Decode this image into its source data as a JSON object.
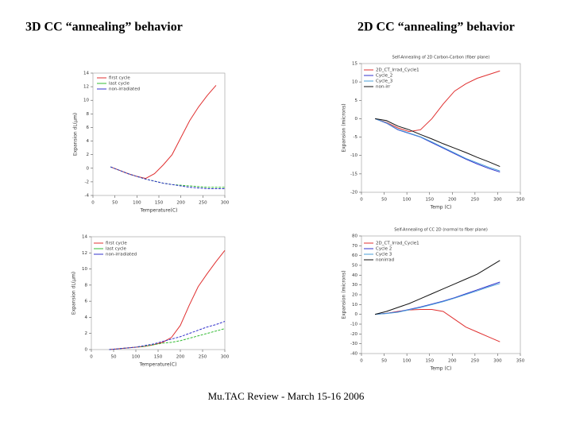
{
  "headings": [
    "3D CC “annealing” behavior",
    "2D CC “annealing” behavior"
  ],
  "footer": "Mu.TAC Review - March 15-16 2006",
  "chart_data": [
    {
      "type": "line",
      "xlabel": "Temperature(C)",
      "ylabel": "Expansion dL(µm)",
      "x": [
        40,
        60,
        80,
        100,
        120,
        140,
        160,
        180,
        200,
        220,
        240,
        260,
        280,
        300
      ],
      "xlim": [
        0,
        300
      ],
      "xticks": [
        0,
        50,
        100,
        150,
        200,
        250,
        300
      ],
      "ylim": [
        -4,
        14
      ],
      "yticks": [
        -4,
        -2,
        0,
        2,
        4,
        6,
        8,
        10,
        12,
        14
      ],
      "series": [
        {
          "name": "first cycle",
          "color": "#e03030",
          "values": [
            0.2,
            -0.3,
            -0.8,
            -1.2,
            -1.5,
            -0.8,
            0.5,
            2,
            4.5,
            7,
            9,
            10.7,
            12.2,
            null
          ]
        },
        {
          "name": "last cycle",
          "color": "#33bb33",
          "values": [
            0.2,
            -0.3,
            -0.8,
            -1.2,
            -1.6,
            -1.9,
            -2.2,
            -2.4,
            -2.5,
            -2.6,
            -2.7,
            -2.8,
            -2.8,
            -2.8
          ]
        },
        {
          "name": "non-irradiated",
          "color": "#3333cc",
          "values": [
            0.2,
            -0.3,
            -0.8,
            -1.2,
            -1.6,
            -1.9,
            -2.2,
            -2.4,
            -2.6,
            -2.8,
            -2.9,
            -3,
            -3,
            -3
          ]
        }
      ]
    },
    {
      "type": "line",
      "title": "Self-Annealing of 2D Carbon-Carbon (fiber plane)",
      "xlabel": "Temp (C)",
      "ylabel": "Expansion (microns)",
      "x": [
        30,
        55,
        80,
        105,
        130,
        155,
        180,
        205,
        230,
        255,
        280,
        305
      ],
      "xlim": [
        0,
        350
      ],
      "xticks": [
        0,
        50,
        100,
        150,
        200,
        250,
        300,
        350
      ],
      "ylim": [
        -20,
        15
      ],
      "yticks": [
        -20,
        -15,
        -10,
        -5,
        0,
        5,
        10,
        15
      ],
      "series": [
        {
          "name": "2D_CT_Irrad_Cycle1",
          "color": "#e03030",
          "values": [
            0,
            -1,
            -2.5,
            -3.5,
            -3,
            0,
            4,
            7.5,
            9.5,
            11,
            12,
            13
          ]
        },
        {
          "name": "Cycle_2",
          "color": "#3333cc",
          "values": [
            0,
            -1.2,
            -3,
            -4,
            -5,
            -6.5,
            -8,
            -9.5,
            -11,
            -12.3,
            -13.5,
            -14.5
          ]
        },
        {
          "name": "Cycle_3",
          "color": "#4a9fd8",
          "values": [
            0,
            -1.1,
            -2.9,
            -3.9,
            -4.9,
            -6.3,
            -7.8,
            -9.3,
            -10.8,
            -12,
            -13.2,
            -14.2
          ]
        },
        {
          "name": "non-irr",
          "color": "#111111",
          "values": [
            0,
            -0.5,
            -2,
            -3,
            -4.3,
            -5.5,
            -6.8,
            -8,
            -9.2,
            -10.5,
            -11.7,
            -13
          ]
        }
      ]
    },
    {
      "type": "line",
      "xlabel": "Temperature(C)",
      "ylabel": "Expansion dL(µm)",
      "x": [
        40,
        60,
        80,
        100,
        120,
        140,
        160,
        180,
        200,
        220,
        240,
        260,
        280,
        300
      ],
      "xlim": [
        0,
        300
      ],
      "xticks": [
        0,
        50,
        100,
        150,
        200,
        250,
        300
      ],
      "ylim": [
        0,
        14
      ],
      "yticks": [
        0,
        2,
        4,
        6,
        8,
        10,
        12,
        14
      ],
      "series": [
        {
          "name": "first cycle",
          "color": "#e03030",
          "values": [
            0,
            0.1,
            0.2,
            0.3,
            0.4,
            0.6,
            0.9,
            1.5,
            3,
            5.5,
            7.8,
            9.4,
            10.9,
            12.3
          ]
        },
        {
          "name": "last cycle",
          "color": "#33bb33",
          "values": [
            0,
            0.1,
            0.2,
            0.3,
            0.4,
            0.6,
            0.8,
            0.9,
            1.1,
            1.4,
            1.7,
            2,
            2.3,
            2.6
          ]
        },
        {
          "name": "non-irradiated",
          "color": "#3333cc",
          "values": [
            0,
            0.1,
            0.2,
            0.3,
            0.5,
            0.7,
            1,
            1.3,
            1.6,
            2,
            2.4,
            2.8,
            3.1,
            3.5
          ]
        }
      ]
    },
    {
      "type": "line",
      "title": "Self-Annealing of CC 2D (normal to fiber plane)",
      "xlabel": "Temp (C)",
      "ylabel": "Expansion (microns)",
      "x": [
        30,
        55,
        80,
        105,
        130,
        155,
        180,
        205,
        230,
        255,
        280,
        305
      ],
      "xlim": [
        0,
        350
      ],
      "xticks": [
        0,
        50,
        100,
        150,
        200,
        250,
        300,
        350
      ],
      "ylim": [
        -40,
        80
      ],
      "yticks": [
        -40,
        -30,
        -20,
        -10,
        0,
        10,
        20,
        30,
        40,
        50,
        60,
        70,
        80
      ],
      "series": [
        {
          "name": "2D_CT_Irrad_Cycle1",
          "color": "#e03030",
          "values": [
            0,
            1,
            3,
            4.5,
            5,
            5,
            3,
            -5,
            -13,
            -18,
            -23,
            -28
          ]
        },
        {
          "name": "Cycle 2",
          "color": "#3333cc",
          "values": [
            0,
            1,
            2.5,
            5,
            7.5,
            10.5,
            13.5,
            17,
            21,
            25,
            29,
            33
          ]
        },
        {
          "name": "Cycle 3",
          "color": "#4a9fd8",
          "values": [
            0,
            0.8,
            2.2,
            4.6,
            7,
            10,
            13,
            16.5,
            20.3,
            24,
            28,
            31.5
          ]
        },
        {
          "name": "nonirrad",
          "color": "#111111",
          "values": [
            0,
            3,
            7,
            11,
            16,
            21,
            26,
            31,
            36,
            41,
            48,
            55
          ]
        }
      ]
    }
  ]
}
